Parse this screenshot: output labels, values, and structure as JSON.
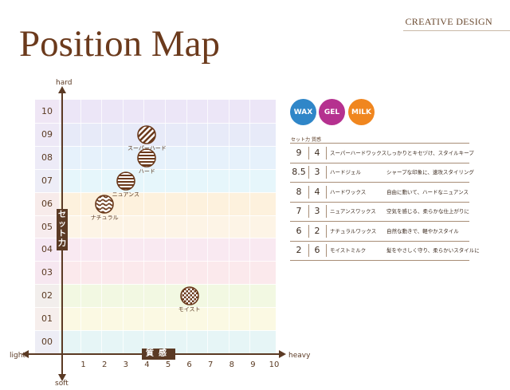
{
  "header": {
    "brand": "CREATIVE DESIGN",
    "title": "Position Map"
  },
  "map": {
    "y_top_label": "hard",
    "y_bottom_label": "soft",
    "x_left_label": "light",
    "x_right_label": "heavy",
    "y_axis_title": "セット力",
    "x_axis_title": "質感",
    "y_ticks": [
      "10",
      "09",
      "08",
      "07",
      "06",
      "05",
      "04",
      "03",
      "02",
      "01",
      "00"
    ],
    "x_ticks": [
      "1",
      "2",
      "3",
      "4",
      "5",
      "6",
      "7",
      "8",
      "9",
      "10"
    ]
  },
  "chart_data": {
    "type": "scatter",
    "xlabel": "質感",
    "ylabel": "セット力",
    "xlim": [
      0,
      10
    ],
    "ylim": [
      0,
      10
    ],
    "points": [
      {
        "label": "スーパーハード",
        "x": 4,
        "y": 9,
        "pattern": "diagonal-stripe"
      },
      {
        "label": "ハード",
        "x": 4,
        "y": 8,
        "pattern": "horizontal-stripe"
      },
      {
        "label": "ニュアンス",
        "x": 3,
        "y": 7,
        "pattern": "horizontal-stripe"
      },
      {
        "label": "ナチュラル",
        "x": 2,
        "y": 6,
        "pattern": "wavy"
      },
      {
        "label": "モイスト",
        "x": 6,
        "y": 2,
        "pattern": "check"
      }
    ]
  },
  "legend": {
    "badges": [
      {
        "label": "WAX",
        "color": "#2f86c8"
      },
      {
        "label": "GEL",
        "color": "#b5318f"
      },
      {
        "label": "MILK",
        "color": "#f0861f"
      }
    ]
  },
  "table": {
    "headers": [
      "セット力",
      "質感"
    ],
    "rows": [
      {
        "set": "9",
        "hold": "4",
        "name": "スーパーハードワックス",
        "desc": "しっかりとキセヅけ、スタイルキープ"
      },
      {
        "set": "8.5",
        "hold": "3",
        "name": "ハードジェル",
        "desc": "シャープな印象に、速攻スタイリング"
      },
      {
        "set": "8",
        "hold": "4",
        "name": "ハードワックス",
        "desc": "自由に動いて、ハードなニュアンス"
      },
      {
        "set": "7",
        "hold": "3",
        "name": "ニュアンスワックス",
        "desc": "空気を感じる、柔らかな仕上がりに"
      },
      {
        "set": "6",
        "hold": "2",
        "name": "ナチュラルワックス",
        "desc": "自然な動きで、軽やかスタイル"
      },
      {
        "set": "2",
        "hold": "6",
        "name": "モイストミルク",
        "desc": "髪をやさしく守り、柔らかいスタイルに"
      }
    ]
  },
  "colors": {
    "axis": "#5b3a24",
    "marker": "#6b3a1c",
    "row_bands": [
      "#ece6f7",
      "#e7eaf8",
      "#e6f1fb",
      "#e6f6fb",
      "#fdf1dd",
      "#fdf4e6",
      "#f9e9f1",
      "#fbe9ec",
      "#f2f8e2",
      "#fbf9e3",
      "#e6f5f6"
    ],
    "col_tint": "#f3e6f4"
  }
}
